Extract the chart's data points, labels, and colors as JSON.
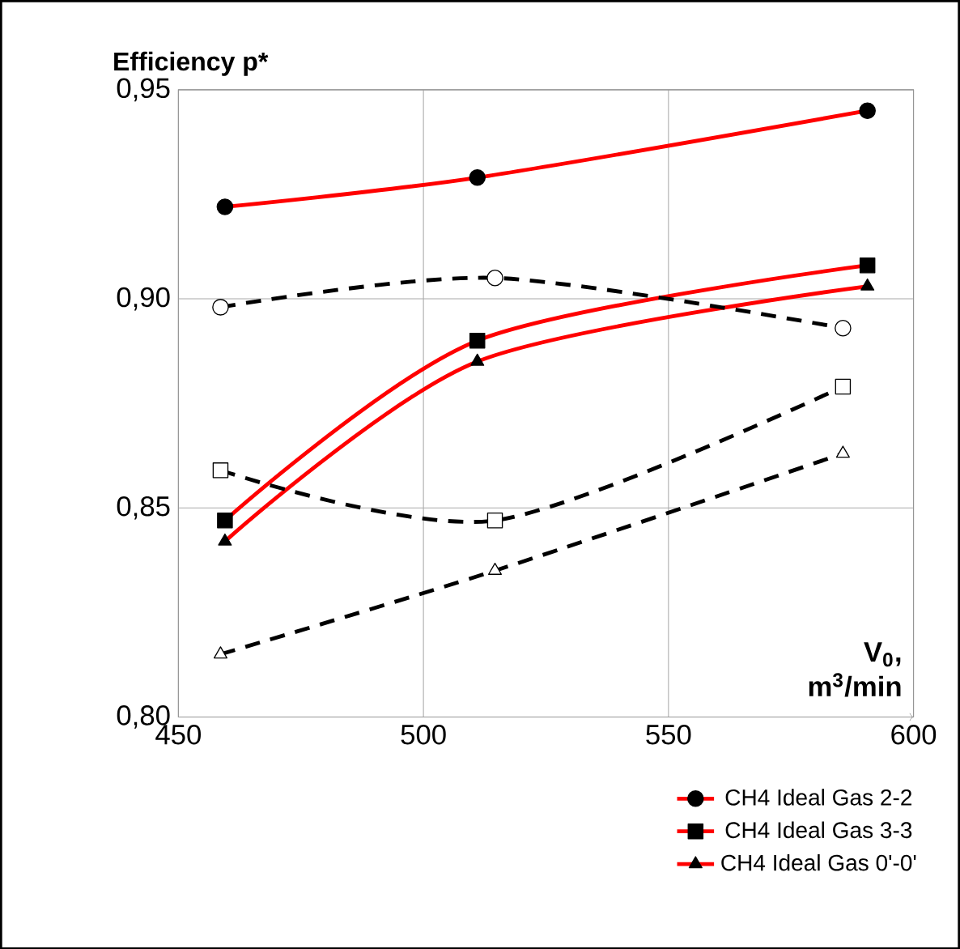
{
  "chart_data": {
    "type": "line",
    "ylabel": "Efficiency p*",
    "xlabel": "V$_{0}$, m$^{3}$/min",
    "xlim": [
      450,
      600
    ],
    "xticks": [
      450,
      500,
      550,
      600
    ],
    "ylim": [
      0.8,
      0.95
    ],
    "yticks": [
      {
        "value": 0.8,
        "label": "0,80"
      },
      {
        "value": 0.85,
        "label": "0,85"
      },
      {
        "value": 0.9,
        "label": "0,90"
      },
      {
        "value": 0.95,
        "label": "0,95"
      }
    ],
    "grid": true,
    "legend": "bottom right",
    "series": [
      {
        "name": "CH4 Ideal Gas 2-2",
        "color": "#ff0000",
        "marker": "circle",
        "line_style": "solid",
        "x": [
          459.5,
          511,
          590.6
        ],
        "values": [
          0.922,
          0.929,
          0.945
        ]
      },
      {
        "name": "CH4 Ideal Gas 3-3",
        "color": "#ff0000",
        "marker": "square",
        "line_style": "solid",
        "x": [
          459.5,
          511,
          590.6
        ],
        "values": [
          0.847,
          0.89,
          0.908
        ]
      },
      {
        "name": "CH4 Ideal Gas 0'-0'",
        "color": "#ff0000",
        "marker": "triangle",
        "line_style": "solid",
        "x": [
          459.5,
          511,
          590.6
        ],
        "values": [
          0.842,
          0.885,
          0.903
        ]
      },
      {
        "color": "#000000",
        "marker": "circle",
        "line_style": "dashed",
        "x": [
          458.6,
          514.6,
          585.6
        ],
        "values": [
          0.898,
          0.905,
          0.893
        ]
      },
      {
        "color": "#000000",
        "marker": "square",
        "line_style": "dashed",
        "x": [
          458.6,
          514.6,
          585.6
        ],
        "values": [
          0.859,
          0.847,
          0.879
        ]
      },
      {
        "color": "#000000",
        "marker": "triangle",
        "line_style": "dashed",
        "x": [
          458.6,
          514.6,
          585.6
        ],
        "values": [
          0.815,
          0.835,
          0.863
        ]
      }
    ]
  }
}
